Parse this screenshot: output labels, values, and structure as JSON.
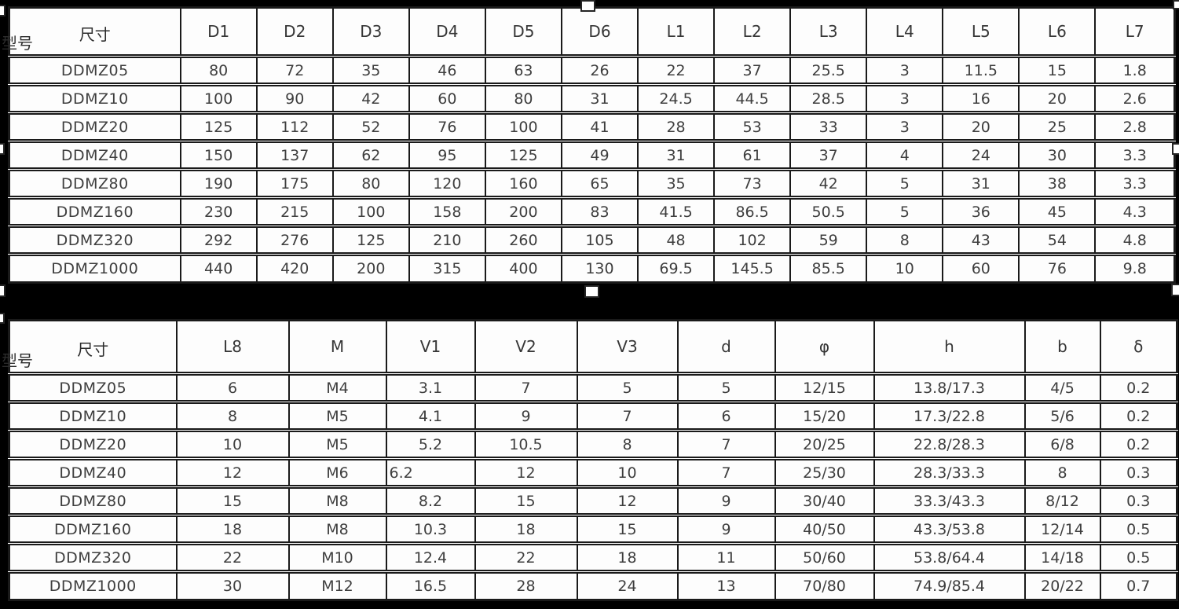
{
  "page": {
    "background_color": "#000000",
    "table_background": "#fdfdfd",
    "grid_color": "#1a1a1a",
    "text_color": "#3e3e3e"
  },
  "table1": {
    "corner": {
      "top_label": "尺寸",
      "bottom_label": "型号"
    },
    "columns": [
      "D1",
      "D2",
      "D3",
      "D4",
      "D5",
      "D6",
      "L1",
      "L2",
      "L3",
      "L4",
      "L5",
      "L6",
      "L7"
    ],
    "rows": [
      {
        "model": "DDMZ05",
        "values": [
          "80",
          "72",
          "35",
          "46",
          "63",
          "26",
          "22",
          "37",
          "25.5",
          "3",
          "11.5",
          "15",
          "1.8"
        ]
      },
      {
        "model": "DDMZ10",
        "values": [
          "100",
          "90",
          "42",
          "60",
          "80",
          "31",
          "24.5",
          "44.5",
          "28.5",
          "3",
          "16",
          "20",
          "2.6"
        ]
      },
      {
        "model": "DDMZ20",
        "values": [
          "125",
          "112",
          "52",
          "76",
          "100",
          "41",
          "28",
          "53",
          "33",
          "3",
          "20",
          "25",
          "2.8"
        ]
      },
      {
        "model": "DDMZ40",
        "values": [
          "150",
          "137",
          "62",
          "95",
          "125",
          "49",
          "31",
          "61",
          "37",
          "4",
          "24",
          "30",
          "3.3"
        ]
      },
      {
        "model": "DDMZ80",
        "values": [
          "190",
          "175",
          "80",
          "120",
          "160",
          "65",
          "35",
          "73",
          "42",
          "5",
          "31",
          "38",
          "3.3"
        ]
      },
      {
        "model": "DDMZ160",
        "values": [
          "230",
          "215",
          "100",
          "158",
          "200",
          "83",
          "41.5",
          "86.5",
          "50.5",
          "5",
          "36",
          "45",
          "4.3"
        ]
      },
      {
        "model": "DDMZ320",
        "values": [
          "292",
          "276",
          "125",
          "210",
          "260",
          "105",
          "48",
          "102",
          "59",
          "8",
          "43",
          "54",
          "4.8"
        ]
      },
      {
        "model": "DDMZ1000",
        "values": [
          "440",
          "420",
          "200",
          "315",
          "400",
          "130",
          "69.5",
          "145.5",
          "85.5",
          "10",
          "60",
          "76",
          "9.8"
        ]
      }
    ]
  },
  "table2": {
    "corner": {
      "top_label": "尺寸",
      "bottom_label": "型号"
    },
    "columns": [
      "L8",
      "M",
      "V1",
      "V2",
      "V3",
      "d",
      "φ",
      "h",
      "b",
      "δ"
    ],
    "rows": [
      {
        "model": "DDMZ05",
        "values": [
          "6",
          "M4",
          "3.1",
          "7",
          "5",
          "5",
          "12/15",
          "13.8/17.3",
          "4/5",
          "0.2"
        ]
      },
      {
        "model": "DDMZ10",
        "values": [
          "8",
          "M5",
          "4.1",
          "9",
          "7",
          "6",
          "15/20",
          "17.3/22.8",
          "5/6",
          "0.2"
        ]
      },
      {
        "model": "DDMZ20",
        "values": [
          "10",
          "M5",
          "5.2",
          "10.5",
          "8",
          "7",
          "20/25",
          "22.8/28.3",
          "6/8",
          "0.2"
        ]
      },
      {
        "model": "DDMZ40",
        "values": [
          "12",
          "M6",
          "6.2",
          "12",
          "10",
          "7",
          "25/30",
          "28.3/33.3",
          "8",
          "0.3"
        ],
        "left_align_cols": [
          2
        ]
      },
      {
        "model": "DDMZ80",
        "values": [
          "15",
          "M8",
          "8.2",
          "15",
          "12",
          "9",
          "30/40",
          "33.3/43.3",
          "8/12",
          "0.3"
        ]
      },
      {
        "model": "DDMZ160",
        "values": [
          "18",
          "M8",
          "10.3",
          "18",
          "15",
          "9",
          "40/50",
          "43.3/53.8",
          "12/14",
          "0.5"
        ]
      },
      {
        "model": "DDMZ320",
        "values": [
          "22",
          "M10",
          "12.4",
          "22",
          "18",
          "11",
          "50/60",
          "53.8/64.4",
          "14/18",
          "0.5"
        ]
      },
      {
        "model": "DDMZ1000",
        "values": [
          "30",
          "M12",
          "16.5",
          "28",
          "24",
          "13",
          "70/80",
          "74.9/85.4",
          "20/22",
          "0.7"
        ]
      }
    ]
  },
  "selection_handles": [
    "top-left",
    "top-center",
    "top-right",
    "middle-left",
    "middle-right",
    "bottom-left",
    "bottom-center",
    "bottom-right",
    "table2-top-left"
  ]
}
